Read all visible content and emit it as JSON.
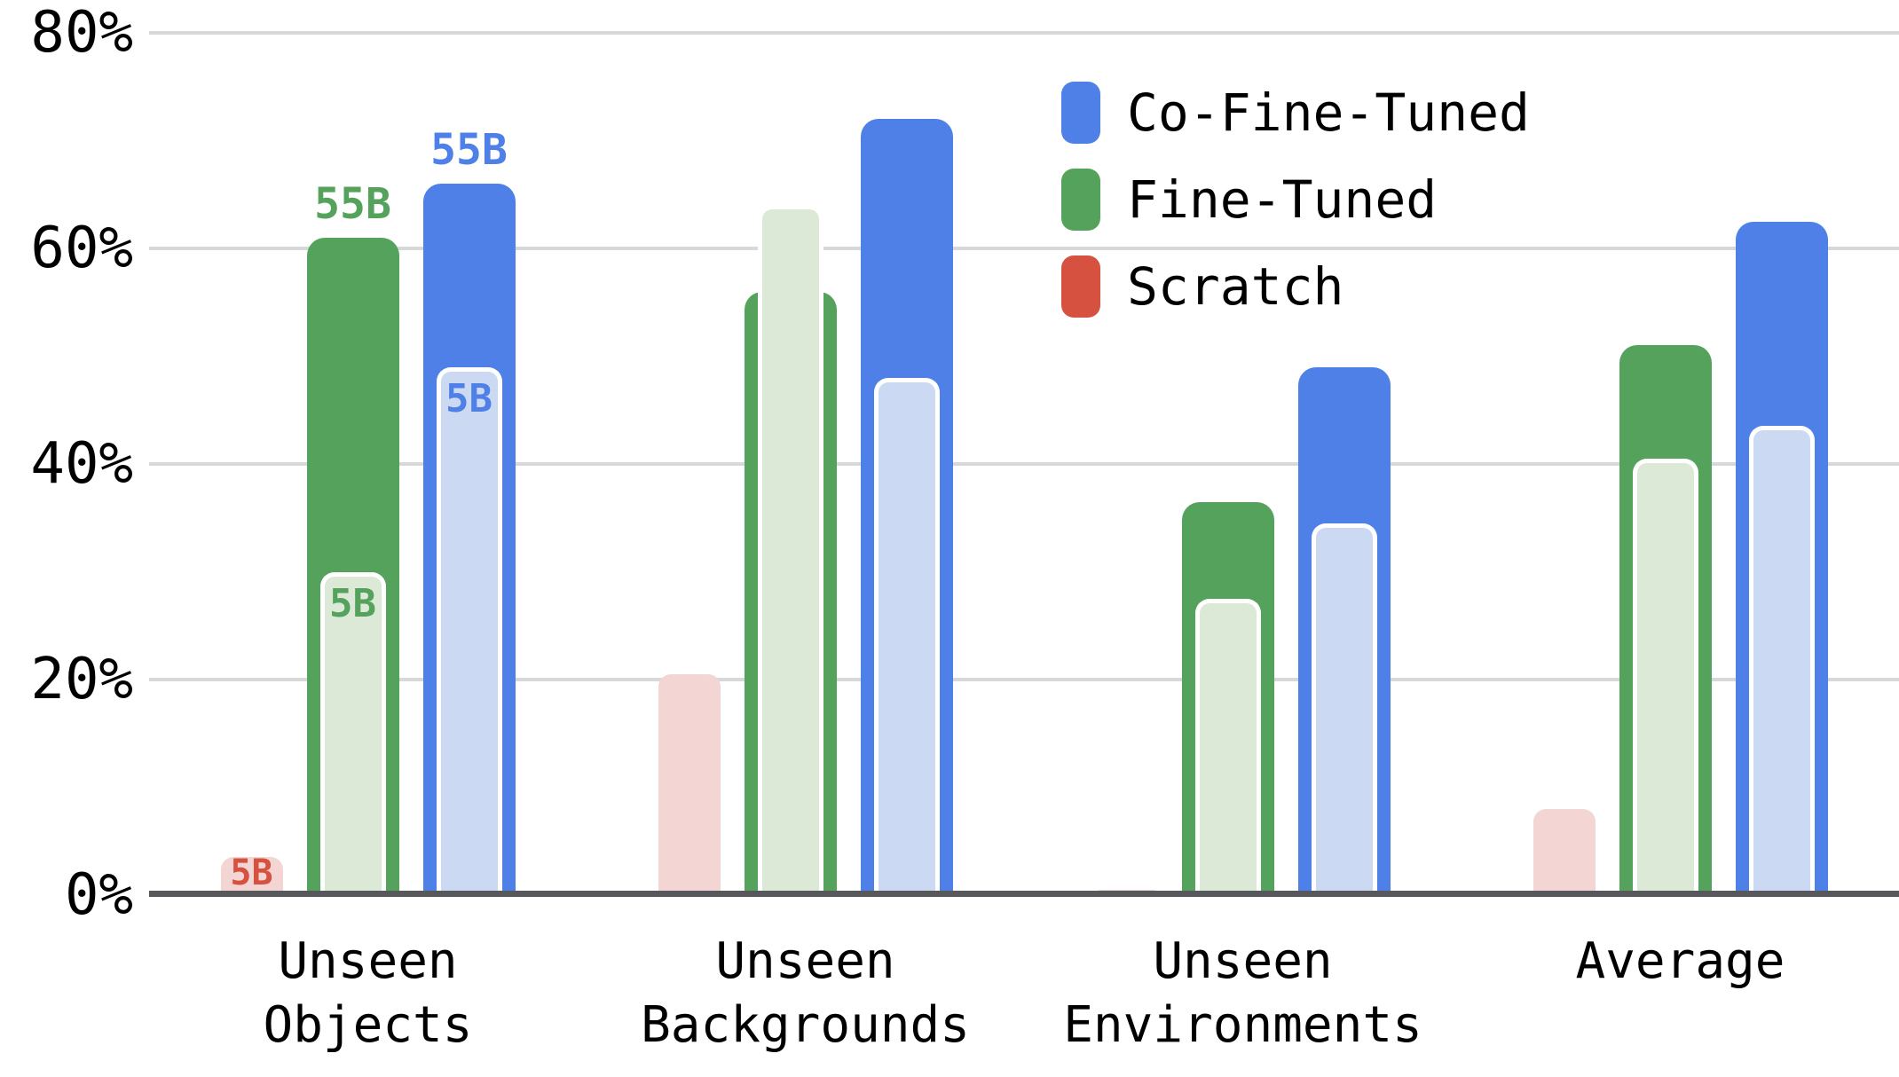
{
  "colors": {
    "co_fine_tuned": "#4e80e8",
    "co_fine_tuned_pale": "#ccd9f3",
    "fine_tuned": "#55a25d",
    "fine_tuned_pale": "#dce9d7",
    "scratch": "#d65140",
    "scratch_pale": "#f3d6d3",
    "inner_bar_border": "#ffffff",
    "gridline": "#d7d8d9",
    "axis_line": "#56585b",
    "text": "#000000",
    "background": "#ffffff"
  },
  "chart_data": {
    "type": "bar",
    "title": "",
    "xlabel": "",
    "ylabel": "",
    "ylim": [
      0,
      80
    ],
    "grid": true,
    "gridline_step_pct": 20,
    "ytick_labels": [
      "0%",
      "20%",
      "40%",
      "60%",
      "80%"
    ],
    "legend_position": "top-right",
    "legend": [
      {
        "label": "Co-Fine-Tuned",
        "color_key": "co_fine_tuned"
      },
      {
        "label": "Fine-Tuned",
        "color_key": "fine_tuned"
      },
      {
        "label": "Scratch",
        "color_key": "scratch"
      }
    ],
    "categories": [
      [
        "Unseen",
        "Objects"
      ],
      [
        "Unseen",
        "Backgrounds"
      ],
      [
        "Unseen",
        "Environments"
      ],
      [
        "Average"
      ]
    ],
    "model_sizes": [
      "5B",
      "55B"
    ],
    "series": [
      {
        "name": "Scratch",
        "size": "5B",
        "style": "pale",
        "values": [
          3.5,
          20.5,
          0.5,
          8
        ]
      },
      {
        "name": "Fine-Tuned",
        "size": "55B",
        "style": "solid",
        "values": [
          61,
          56,
          36.5,
          51
        ]
      },
      {
        "name": "Fine-Tuned",
        "size": "5B",
        "style": "pale",
        "values": [
          30,
          64,
          27.5,
          40.5
        ]
      },
      {
        "name": "Co-Fine-Tuned",
        "size": "55B",
        "style": "solid",
        "values": [
          66,
          72,
          49,
          62.5
        ]
      },
      {
        "name": "Co-Fine-Tuned",
        "size": "5B",
        "style": "pale",
        "values": [
          49,
          48,
          34.5,
          43.5
        ]
      }
    ],
    "annotations": [
      {
        "group": 0,
        "bar": "fine_tuned_55b",
        "text": "55B",
        "placement": "above"
      },
      {
        "group": 0,
        "bar": "co_fine_tuned_55b",
        "text": "55B",
        "placement": "above"
      },
      {
        "group": 0,
        "bar": "fine_tuned_5b",
        "text": "5B",
        "placement": "inside-top"
      },
      {
        "group": 0,
        "bar": "co_fine_tuned_5b",
        "text": "5B",
        "placement": "inside-top"
      },
      {
        "group": 0,
        "bar": "scratch_5b",
        "text": "5B",
        "placement": "inside"
      }
    ]
  }
}
